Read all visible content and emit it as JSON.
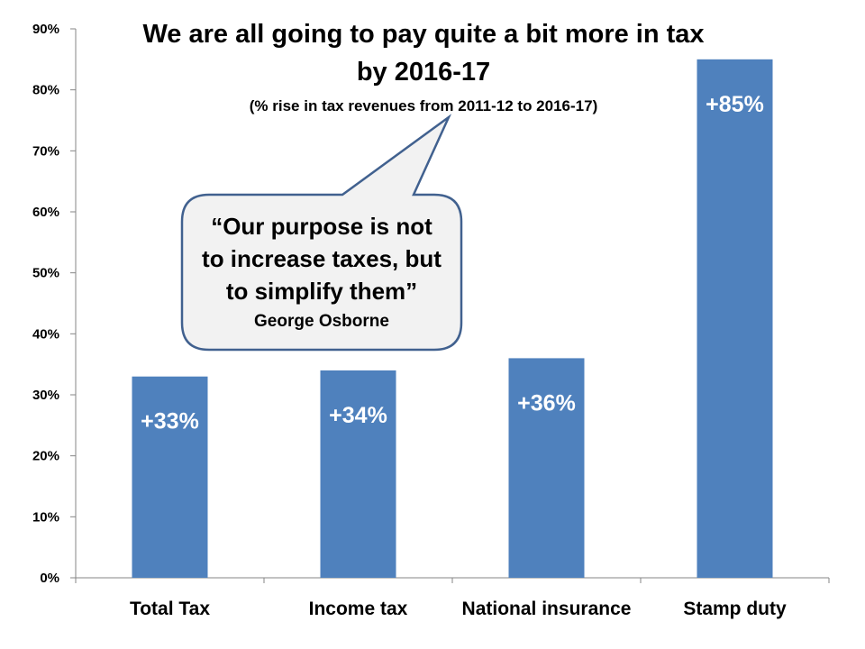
{
  "chart_data": {
    "type": "bar",
    "title_lines": [
      "We are all going to pay quite a bit more in tax",
      "by 2016-17"
    ],
    "subtitle": "(% rise in tax revenues from 2011-12 to 2016-17)",
    "categories": [
      "Total Tax",
      "Income tax",
      "National insurance",
      "Stamp duty"
    ],
    "values": [
      33,
      34,
      36,
      85
    ],
    "data_labels": [
      "+33%",
      "+34%",
      "+36%",
      "+85%"
    ],
    "y_ticks": [
      "0%",
      "10%",
      "20%",
      "30%",
      "40%",
      "50%",
      "60%",
      "70%",
      "80%",
      "90%"
    ],
    "ylim": [
      0,
      90
    ],
    "xlabel": "",
    "ylabel": "",
    "grid": false,
    "bar_color": "#4f81bd",
    "label_color": "#ffffff"
  },
  "callout": {
    "lines": [
      "“Our purpose is not",
      "to increase taxes, but",
      "to simplify them”"
    ],
    "attribution": "George Osborne",
    "fill": "#f2f2f2",
    "border": "#41618f"
  }
}
